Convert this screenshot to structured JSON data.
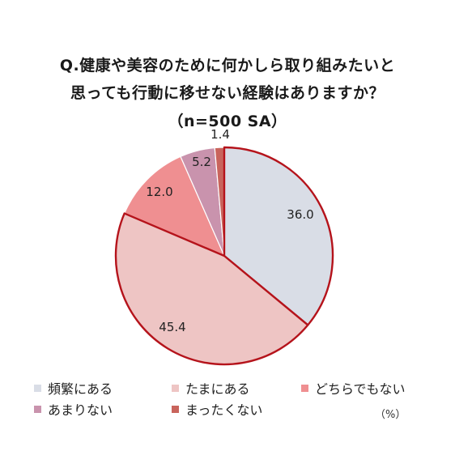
{
  "chart_data": {
    "type": "pie",
    "title_lines": [
      "Q.健康や美容のために何かしら取り組みたいと",
      "思っても行動に移せない経験はありますか？",
      "（n=500 SA）"
    ],
    "unit": "（%）",
    "slices": [
      {
        "label": "頻繁にある",
        "value": 36.0,
        "display": "36.0",
        "color": "#d9dde6"
      },
      {
        "label": "たまにある",
        "value": 45.4,
        "display": "45.4",
        "color": "#eec5c4"
      },
      {
        "label": "どちらでもない",
        "value": 12.0,
        "display": "12.0",
        "color": "#ef8f91"
      },
      {
        "label": "あまりない",
        "value": 5.2,
        "display": "5.2",
        "color": "#c993ad"
      },
      {
        "label": "まったくない",
        "value": 1.4,
        "display": "1.4",
        "color": "#c9645c"
      }
    ],
    "highlight_color": "#b5131b",
    "legend_placement": "bottom"
  }
}
